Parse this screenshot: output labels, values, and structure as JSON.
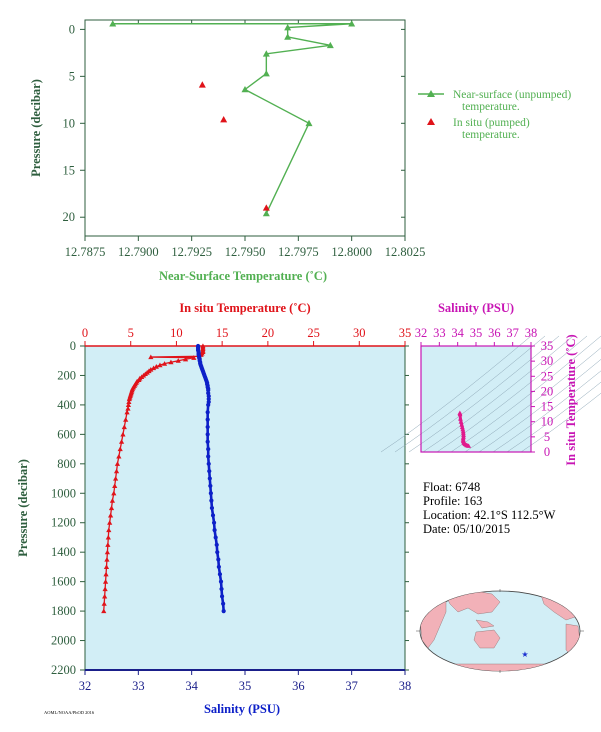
{
  "colors": {
    "green_dark": "#2e5e3e",
    "green_line": "#52b052",
    "red": "#e0131a",
    "blue": "#0d20c8",
    "magenta": "#c815b4",
    "panel_bg": "#d2eef6",
    "navy": "#1a1f8a"
  },
  "float_info": {
    "float": "Float:  6748",
    "profile": "Profile:  163",
    "location": "Location:  42.1°S  112.5°W",
    "date": "Date:  05/10/2015"
  },
  "credit": "AOML/NOAA/PhOD 2016",
  "chart_data": [
    {
      "type": "line",
      "xlabel": "Near-Surface Temperature (˚C)",
      "ylabel": "Pressure (decibar)",
      "xlim": [
        12.7875,
        12.8025
      ],
      "ylim": [
        22,
        -1
      ],
      "x_ticks": [
        "12.7875",
        "12.7900",
        "12.7925",
        "12.7950",
        "12.7975",
        "12.8000",
        "12.8025"
      ],
      "y_ticks": [
        "0",
        "5",
        "10",
        "15",
        "20"
      ],
      "legend": [
        {
          "label": "Near-surface (unpumped)",
          "label2": "temperature."
        },
        {
          "label": "In situ (pumped)",
          "label2": "temperature."
        }
      ],
      "series": [
        {
          "name": "Near-surface (unpumped) temperature.",
          "points": [
            [
              12.7888,
              -0.6
            ],
            [
              12.8,
              -0.6
            ],
            [
              12.797,
              -0.2
            ],
            [
              12.797,
              0.8
            ],
            [
              12.799,
              1.7
            ],
            [
              12.796,
              2.6
            ],
            [
              12.796,
              4.7
            ],
            [
              12.795,
              6.4
            ],
            [
              12.798,
              10.0
            ],
            [
              12.796,
              19.6
            ]
          ]
        },
        {
          "name": "In situ (pumped) temperature.",
          "points": [
            [
              12.793,
              5.9
            ],
            [
              12.794,
              9.6
            ],
            [
              12.796,
              19.0
            ]
          ]
        }
      ]
    },
    {
      "type": "scatter",
      "xlabel_top": "In situ Temperature (˚C)",
      "xlabel_bottom": "Salinity (PSU)",
      "ylabel": "Pressure (decibar)",
      "temp_xlim": [
        0,
        35
      ],
      "sal_xlim": [
        32,
        38
      ],
      "ylim": [
        2200,
        0
      ],
      "temp_ticks": [
        "0",
        "5",
        "10",
        "15",
        "20",
        "25",
        "30",
        "35"
      ],
      "sal_ticks": [
        "32",
        "33",
        "34",
        "35",
        "36",
        "37",
        "38"
      ],
      "y_ticks": [
        "0",
        "200",
        "400",
        "600",
        "800",
        "1000",
        "1200",
        "1400",
        "1600",
        "1800",
        "2000",
        "2200"
      ],
      "temperature": {
        "pressure": [
          0,
          10,
          20,
          30,
          40,
          50,
          60,
          70,
          75,
          80,
          90,
          100,
          110,
          120,
          130,
          140,
          150,
          160,
          170,
          180,
          190,
          200,
          210,
          220,
          230,
          240,
          250,
          260,
          270,
          280,
          290,
          300,
          310,
          320,
          330,
          340,
          350,
          360,
          380,
          400,
          425,
          450,
          500,
          550,
          600,
          650,
          700,
          750,
          800,
          850,
          900,
          950,
          1000,
          1050,
          1100,
          1150,
          1200,
          1250,
          1300,
          1350,
          1400,
          1450,
          1500,
          1550,
          1600,
          1650,
          1700,
          1750,
          1800
        ],
        "values": [
          12.9,
          12.9,
          12.9,
          12.9,
          12.9,
          12.8,
          12.7,
          12.5,
          7.2,
          11.9,
          11.0,
          10.2,
          9.4,
          8.7,
          8.2,
          7.8,
          7.5,
          7.2,
          7.0,
          6.8,
          6.6,
          6.4,
          6.2,
          6.0,
          5.9,
          5.7,
          5.6,
          5.5,
          5.4,
          5.3,
          5.2,
          5.15,
          5.1,
          5.05,
          5.0,
          4.95,
          4.9,
          4.85,
          4.8,
          4.75,
          4.7,
          4.6,
          4.45,
          4.3,
          4.15,
          4.0,
          3.85,
          3.7,
          3.55,
          3.45,
          3.35,
          3.25,
          3.15,
          3.0,
          2.9,
          2.8,
          2.7,
          2.6,
          2.55,
          2.5,
          2.45,
          2.4,
          2.35,
          2.3,
          2.25,
          2.2,
          2.15,
          2.1,
          2.05
        ]
      },
      "salinity": {
        "pressure": [
          0,
          10,
          20,
          30,
          40,
          50,
          60,
          70,
          80,
          90,
          100,
          110,
          120,
          130,
          140,
          150,
          160,
          170,
          180,
          190,
          200,
          210,
          220,
          230,
          240,
          250,
          260,
          270,
          280,
          290,
          300,
          320,
          340,
          360,
          380,
          400,
          450,
          500,
          550,
          600,
          650,
          700,
          750,
          800,
          850,
          900,
          950,
          1000,
          1050,
          1100,
          1150,
          1200,
          1250,
          1300,
          1350,
          1400,
          1450,
          1500,
          1550,
          1600,
          1650,
          1700,
          1750,
          1800
        ],
        "values": [
          34.12,
          34.12,
          34.12,
          34.12,
          34.13,
          34.13,
          34.13,
          34.14,
          34.14,
          34.15,
          34.15,
          34.16,
          34.16,
          34.17,
          34.18,
          34.19,
          34.2,
          34.21,
          34.22,
          34.23,
          34.24,
          34.25,
          34.26,
          34.27,
          34.28,
          34.29,
          34.29,
          34.3,
          34.3,
          34.31,
          34.31,
          34.31,
          34.32,
          34.32,
          34.32,
          34.31,
          34.3,
          34.3,
          34.3,
          34.3,
          34.3,
          34.31,
          34.31,
          34.32,
          34.33,
          34.34,
          34.35,
          34.36,
          34.37,
          34.38,
          34.4,
          34.42,
          34.43,
          34.45,
          34.47,
          34.48,
          34.5,
          34.51,
          34.53,
          34.55,
          34.56,
          34.57,
          34.59,
          34.6
        ]
      }
    },
    {
      "type": "scatter",
      "title": "Salinity (PSU)",
      "ylabel": "In situ Temperature (˚C)",
      "xlim": [
        32,
        38
      ],
      "ylim": [
        0,
        35
      ],
      "x_ticks": [
        "32",
        "33",
        "34",
        "35",
        "36",
        "37",
        "38"
      ],
      "y_ticks": [
        "0",
        "5",
        "10",
        "15",
        "20",
        "25",
        "30",
        "35"
      ],
      "points": [
        [
          34.12,
          12.9
        ],
        [
          34.13,
          12.5
        ],
        [
          34.15,
          11.0
        ],
        [
          34.18,
          10.0
        ],
        [
          34.22,
          9.0
        ],
        [
          34.25,
          8.2
        ],
        [
          34.28,
          7.5
        ],
        [
          34.3,
          6.8
        ],
        [
          34.31,
          6.2
        ],
        [
          34.32,
          5.6
        ],
        [
          34.32,
          5.0
        ],
        [
          34.3,
          4.5
        ],
        [
          34.3,
          4.0
        ],
        [
          34.31,
          3.6
        ],
        [
          34.33,
          3.2
        ],
        [
          34.36,
          2.9
        ],
        [
          34.4,
          2.6
        ],
        [
          34.45,
          2.4
        ],
        [
          34.5,
          2.2
        ],
        [
          34.55,
          2.1
        ],
        [
          34.6,
          2.0
        ]
      ]
    }
  ],
  "map": {
    "marker_lon": -112.5,
    "marker_lat": -42.1
  }
}
